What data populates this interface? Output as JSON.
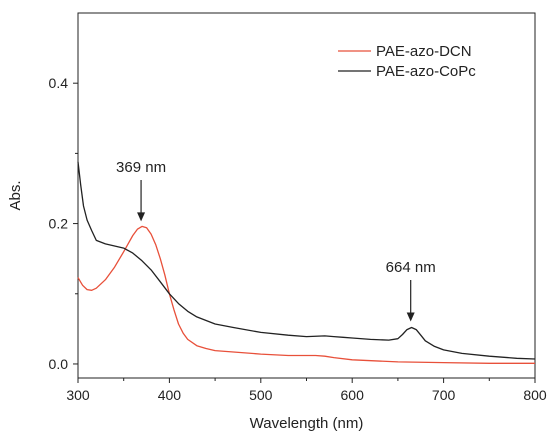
{
  "chart_data": {
    "type": "line",
    "title": "",
    "xlabel": "Wavelength (nm)",
    "ylabel": "Abs.",
    "xlim": [
      300,
      800
    ],
    "ylim": [
      -0.02,
      0.5
    ],
    "x_ticks": [
      300,
      400,
      500,
      600,
      700,
      800
    ],
    "y_ticks": [
      0.0,
      0.2,
      0.4
    ],
    "x_tick_labels": [
      "300",
      "400",
      "500",
      "600",
      "700",
      "800"
    ],
    "y_tick_labels": [
      "0.0",
      "0.2",
      "0.4"
    ],
    "grid": false,
    "legend_position": "top-right",
    "series": [
      {
        "name": "PAE-azo-DCN",
        "color": "#e8503a",
        "x": [
          300,
          305,
          310,
          315,
          320,
          330,
          340,
          350,
          360,
          365,
          370,
          375,
          380,
          385,
          390,
          395,
          400,
          405,
          410,
          415,
          420,
          430,
          440,
          450,
          470,
          500,
          530,
          560,
          570,
          580,
          600,
          650,
          700,
          750,
          800
        ],
        "y": [
          0.123,
          0.112,
          0.106,
          0.105,
          0.108,
          0.12,
          0.138,
          0.16,
          0.183,
          0.192,
          0.196,
          0.194,
          0.185,
          0.17,
          0.15,
          0.127,
          0.1,
          0.077,
          0.057,
          0.044,
          0.035,
          0.026,
          0.022,
          0.019,
          0.017,
          0.014,
          0.012,
          0.012,
          0.011,
          0.009,
          0.006,
          0.003,
          0.002,
          0.001,
          0.001
        ]
      },
      {
        "name": "PAE-azo-CoPc",
        "color": "#222222",
        "x": [
          300,
          303,
          306,
          310,
          315,
          320,
          330,
          340,
          350,
          360,
          370,
          380,
          390,
          400,
          410,
          420,
          430,
          450,
          470,
          500,
          530,
          550,
          570,
          580,
          590,
          600,
          620,
          640,
          650,
          655,
          660,
          665,
          670,
          675,
          680,
          690,
          700,
          720,
          750,
          780,
          800
        ],
        "y": [
          0.288,
          0.255,
          0.225,
          0.205,
          0.19,
          0.176,
          0.171,
          0.168,
          0.165,
          0.158,
          0.147,
          0.134,
          0.117,
          0.1,
          0.086,
          0.075,
          0.067,
          0.057,
          0.052,
          0.045,
          0.041,
          0.039,
          0.04,
          0.039,
          0.038,
          0.037,
          0.035,
          0.034,
          0.036,
          0.042,
          0.049,
          0.052,
          0.049,
          0.041,
          0.033,
          0.025,
          0.02,
          0.015,
          0.011,
          0.008,
          0.007
        ]
      }
    ],
    "annotations": [
      {
        "text": "369 nm",
        "x": 369,
        "y": 0.196
      },
      {
        "text": "664 nm",
        "x": 664,
        "y": 0.052
      }
    ]
  }
}
